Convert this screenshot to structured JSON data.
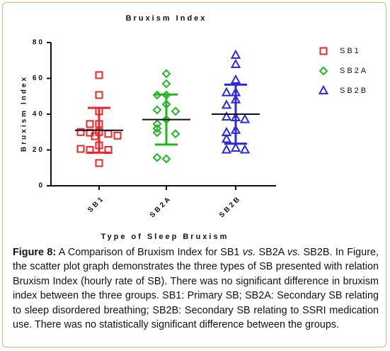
{
  "chart_data": {
    "type": "scatter",
    "title": "Bruxism Index",
    "y_label": "Bruxism Index",
    "x_label": "Type of Sleep Bruxism",
    "categories": [
      "SB1",
      "SB2A",
      "SB2B"
    ],
    "ylim": [
      0,
      80
    ],
    "yticks": [
      0,
      20,
      40,
      60,
      80
    ],
    "series": [
      {
        "name": "SB1",
        "color": "#e8262a",
        "marker": "square",
        "values": [
          61.8,
          50.7,
          41.6,
          34.5,
          34.5,
          30,
          29.7,
          29,
          30,
          28,
          27.7,
          22.6,
          20,
          20,
          20.6,
          12.7
        ],
        "mean": 31,
        "sd": 12.5
      },
      {
        "name": "SB2A",
        "color": "#22b522",
        "marker": "diamond",
        "values": [
          62.6,
          57,
          50.7,
          50.7,
          45.5,
          42.4,
          41.6,
          37,
          34.5,
          32,
          29.7,
          29,
          15,
          15.8
        ],
        "mean": 37,
        "sd": 14
      },
      {
        "name": "SB2B",
        "color": "#2a2ae0",
        "marker": "triangle",
        "values": [
          72.9,
          67.7,
          59,
          52,
          52,
          48,
          45,
          38,
          38.4,
          37,
          31,
          29.7,
          26,
          21,
          20,
          20
        ],
        "mean": 40,
        "sd": 16.5
      }
    ]
  },
  "caption": {
    "label": "Figure 8:",
    "parts": [
      " A Comparison of Bruxism Index for SB1 ",
      "vs.",
      " SB2A ",
      "vs.",
      " SB2B. In Figure, the scatter plot graph demonstrates the three types of SB presented with relation Bruxism Index (hourly rate of SB). There was no significant difference in bruxism index between the three groups. SB1: Primary SB; SB2A: Secondary SB relating to sleep disordered breathing; SB2B: Secondary SB relating to SSRI medication use. There was no statistically significant difference between the groups."
    ]
  }
}
